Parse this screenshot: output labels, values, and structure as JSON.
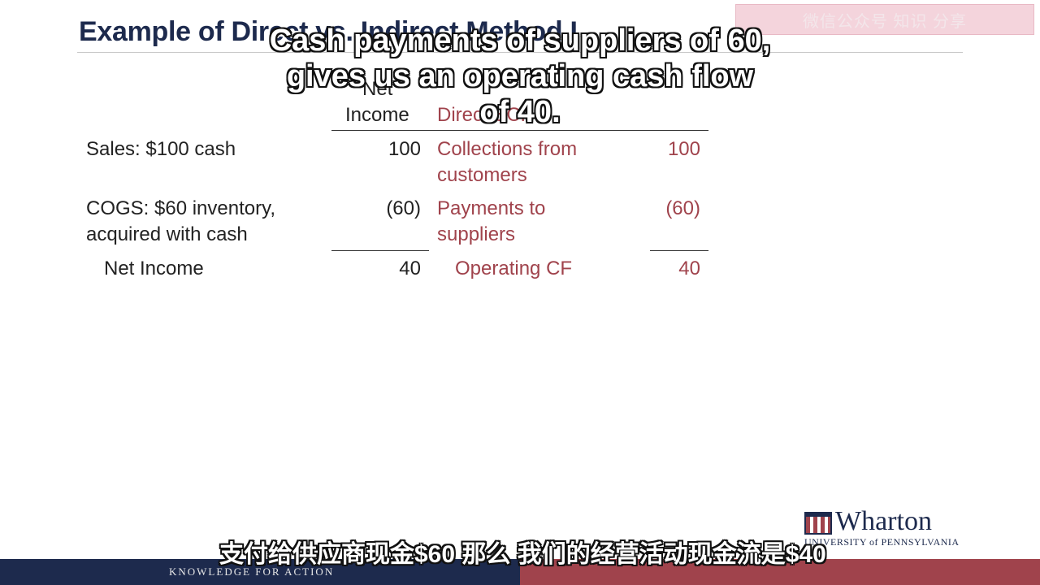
{
  "slide": {
    "title": "Example of Direct vs. Indirect Method I"
  },
  "watermark": {
    "text": "微信公众号 知识 分享"
  },
  "captions": {
    "en_line1": "Cash payments of suppliers of 60,",
    "en_line2": "gives us an operating cash flow of 40.",
    "zh": "支付给供应商现金$60 那么 我们的经营活动现金流是$40"
  },
  "table": {
    "header_net_income": [
      "Net",
      "Income"
    ],
    "header_direct": "Direct SCF",
    "rows": [
      {
        "label": [
          "Sales: $100 cash"
        ],
        "net_income": "100",
        "direct_label": [
          "Collections from",
          "customers"
        ],
        "direct_value": "100"
      },
      {
        "label": [
          "COGS: $60 inventory,",
          "acquired with cash"
        ],
        "net_income": "(60)",
        "direct_label": [
          "Payments to",
          "suppliers"
        ],
        "direct_value": "(60)"
      }
    ],
    "total": {
      "label": "Net Income",
      "net_income": "40",
      "direct_label": "Operating CF",
      "direct_value": "40"
    }
  },
  "footer": {
    "tagline": "KNOWLEDGE FOR ACTION",
    "logo_name": "Wharton",
    "logo_sub": "UNIVERSITY of PENNSYLVANIA"
  },
  "colors": {
    "navy": "#1d2a4d",
    "accent_red": "#a0434c"
  }
}
